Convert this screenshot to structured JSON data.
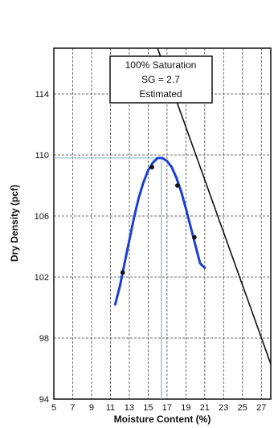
{
  "chart_data": {
    "type": "line",
    "xlabel": "Moisture Content (%)",
    "ylabel": "Dry Density (pcf)",
    "xlim": [
      5,
      28
    ],
    "ylim": [
      94,
      117
    ],
    "x_ticks": [
      5,
      7,
      9,
      11,
      13,
      15,
      17,
      19,
      21,
      23,
      25,
      27
    ],
    "y_ticks": [
      94,
      98,
      102,
      106,
      110,
      114
    ],
    "grid": true,
    "annotation": [
      "100% Saturation",
      "SG = 2.7",
      "Estimated"
    ],
    "series": [
      {
        "kind": "compaction-curve",
        "color": "#1a3fd6",
        "x": [
          11.5,
          12.0,
          12.5,
          13.0,
          13.5,
          14.0,
          14.5,
          15.0,
          15.5,
          16.0,
          16.5,
          17.0,
          17.5,
          18.0,
          18.5,
          19.0,
          19.5,
          20.0,
          20.5,
          21.0
        ],
        "y": [
          100.2,
          101.4,
          102.9,
          104.4,
          105.9,
          107.2,
          108.2,
          109.0,
          109.5,
          109.8,
          109.8,
          109.6,
          109.2,
          108.5,
          107.6,
          106.5,
          105.3,
          104.1,
          102.9,
          102.6
        ]
      },
      {
        "kind": "test-points",
        "color": "#111111",
        "x": [
          12.3,
          15.4,
          18.1,
          19.9
        ],
        "y": [
          102.3,
          109.2,
          108.0,
          104.6
        ]
      },
      {
        "kind": "zero-air-voids",
        "color": "#111111",
        "x": [
          16.0,
          28.0
        ],
        "y": [
          117.0,
          96.3
        ]
      }
    ],
    "optimum": {
      "x": 16.4,
      "y": 109.8,
      "color": "#8fb7c9"
    }
  }
}
